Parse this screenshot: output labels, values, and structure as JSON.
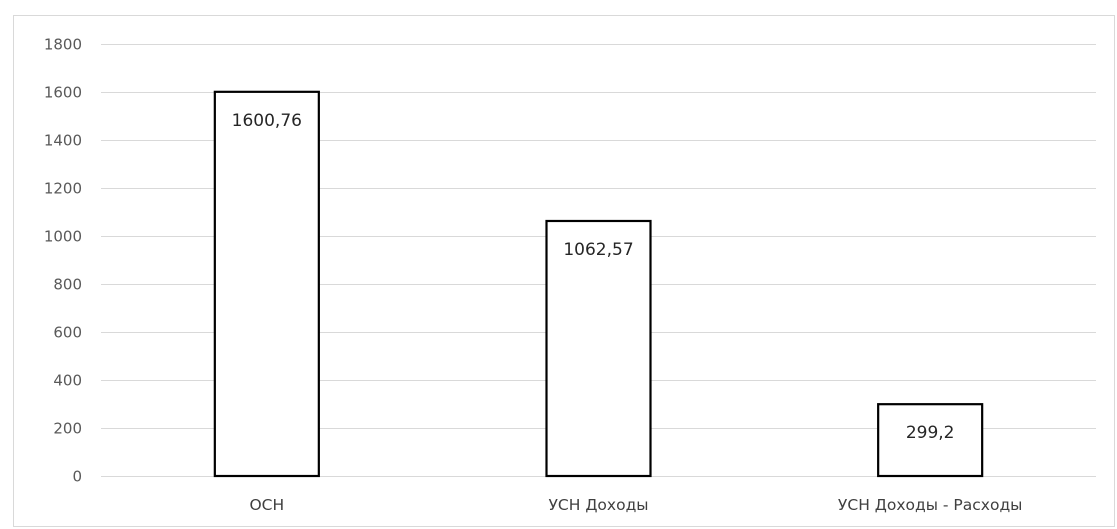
{
  "chart_data": {
    "type": "bar",
    "categories": [
      "ОСН",
      "УСН Доходы",
      "УСН Доходы - Расходы"
    ],
    "values": [
      1600.76,
      1062.57,
      299.2
    ],
    "data_labels": [
      "1600,76",
      "1062,57",
      "299,2"
    ],
    "title": "",
    "xlabel": "",
    "ylabel": "",
    "ylim": [
      0,
      1800
    ],
    "yticks": [
      0,
      200,
      400,
      600,
      800,
      1000,
      1200,
      1400,
      1600,
      1800
    ],
    "grid": true,
    "legend": "none",
    "colors": {
      "bar_fill": "#ffffff",
      "bar_stroke": "#000000",
      "grid": "#d9d9d9"
    }
  }
}
